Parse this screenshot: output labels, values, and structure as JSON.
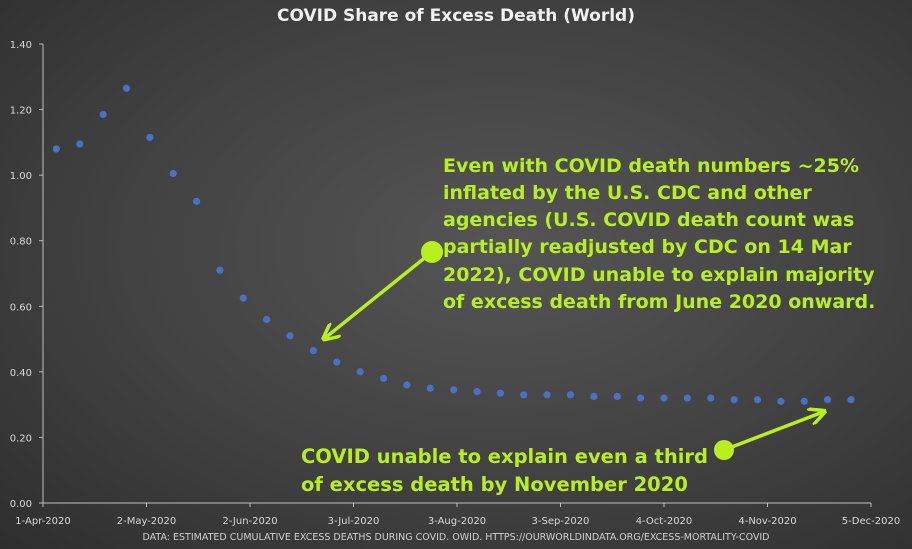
{
  "chart_data": {
    "type": "scatter",
    "title": "COVID Share of Excess Death (World)",
    "xlabel": "",
    "ylabel": "",
    "ylim": [
      0,
      1.4
    ],
    "y_ticks": [
      "0.00",
      "0.20",
      "0.40",
      "0.60",
      "0.80",
      "1.00",
      "1.20",
      "1.40"
    ],
    "x_ticks": [
      "1-Apr-2020",
      "2-May-2020",
      "2-Jun-2020",
      "3-Jul-2020",
      "3-Aug-2020",
      "3-Sep-2020",
      "4-Oct-2020",
      "4-Nov-2020",
      "5-Dec-2020"
    ],
    "x_range_days": [
      0,
      248
    ],
    "series": [
      {
        "name": "COVID share of excess death",
        "color": "#4a72c4",
        "x_days": [
          4,
          11,
          18,
          25,
          32,
          39,
          46,
          53,
          60,
          67,
          74,
          81,
          88,
          95,
          102,
          109,
          116,
          123,
          130,
          137,
          144,
          151,
          158,
          165,
          172,
          179,
          186,
          193,
          200,
          207,
          214,
          221,
          228,
          235,
          242
        ],
        "values": [
          1.08,
          1.095,
          1.185,
          1.265,
          1.115,
          1.005,
          0.92,
          0.71,
          0.625,
          0.56,
          0.51,
          0.465,
          0.43,
          0.4,
          0.38,
          0.36,
          0.35,
          0.345,
          0.34,
          0.335,
          0.33,
          0.33,
          0.33,
          0.325,
          0.325,
          0.32,
          0.32,
          0.32,
          0.32,
          0.315,
          0.315,
          0.31,
          0.31,
          0.315,
          0.315
        ]
      }
    ],
    "annotations": [
      {
        "text": "Even with COVID death numbers ~25% inflated by the U.S. CDC and other agencies (U.S. COVID death count was partially readjusted by CDC on 14 Mar 2022), COVID unable to explain majority of excess death from June 2020 onward."
      },
      {
        "text": "COVID unable to explain even a third of excess death by November 2020"
      }
    ],
    "annotation_color": "#b8f01f",
    "source": "DATA: ESTIMATED CUMULATIVE EXCESS DEATHS DURING COVID. OWID. HTTPS://OURWORLDINDATA.ORG/EXCESS-MORTALITY-COVID"
  },
  "annotation_main_lines": [
    "Even with COVID death numbers ~25%",
    "inflated by the U.S. CDC and other",
    "agencies (U.S. COVID death count was",
    "partially readjusted by CDC on 14 Mar",
    "2022), COVID unable to explain majority",
    "of excess death from June 2020 onward."
  ],
  "annotation_bottom_lines": [
    "COVID unable to explain even a third",
    "of excess death by November 2020"
  ]
}
